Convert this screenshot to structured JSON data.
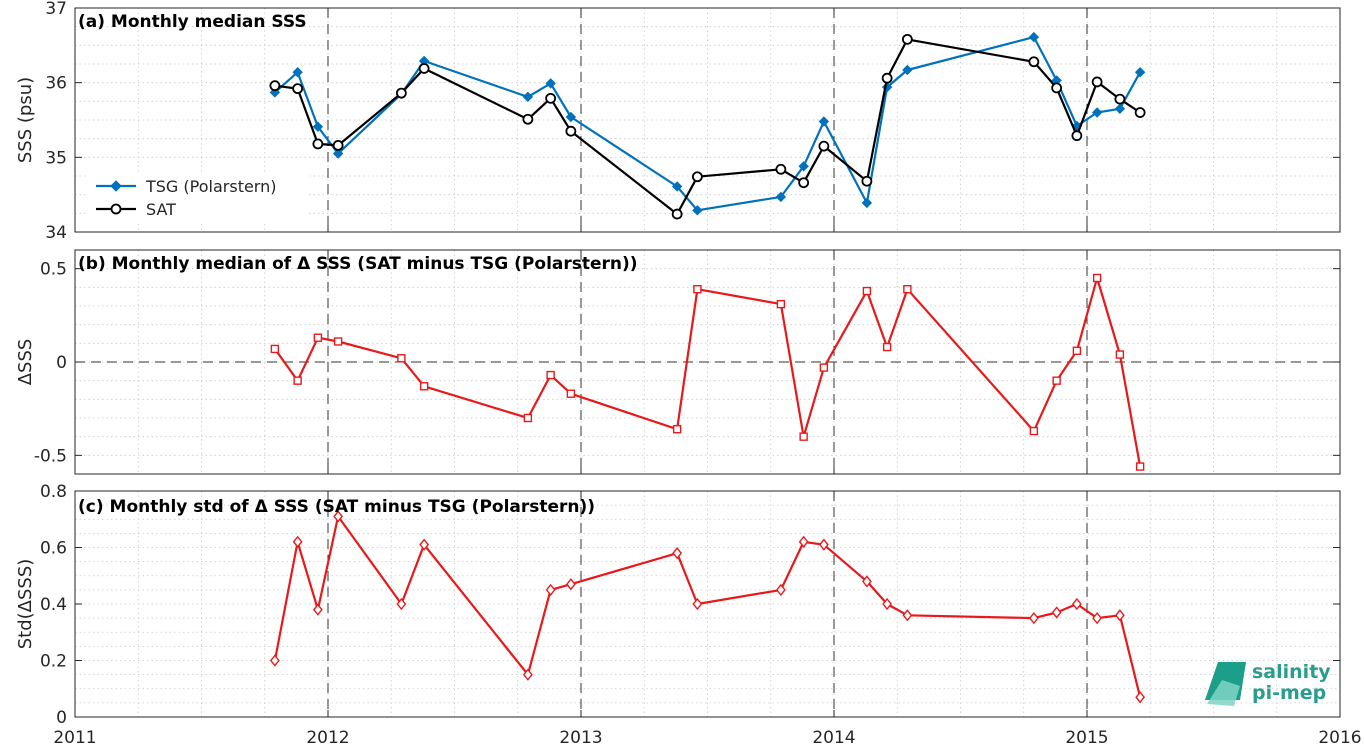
{
  "colors": {
    "tsg": "#0072BD",
    "sat": "#000000",
    "delta": "#E8191B",
    "grid": "#c8c8c8",
    "vline": "#333333"
  },
  "logo": {
    "line1": "salinity",
    "line2": "pi-mep"
  },
  "x_ticks": [
    "2011",
    "2012",
    "2013",
    "2014",
    "2015",
    "2016"
  ],
  "chart_data": [
    {
      "type": "line",
      "title": "(a) Monthly median SSS",
      "ylabel": "SSS (psu)",
      "xlim": [
        2011,
        2016
      ],
      "ylim": [
        34,
        37
      ],
      "y_ticks": [
        "34",
        "35",
        "36",
        "37"
      ],
      "legend": "bottom-left",
      "series": [
        {
          "name": "TSG (Polarstern)",
          "marker": "diamond-filled",
          "x": [
            2011.79,
            2011.88,
            2011.96,
            2012.04,
            2012.29,
            2012.38,
            2012.79,
            2012.88,
            2012.96,
            2013.38,
            2013.46,
            2013.79,
            2013.88,
            2013.96,
            2014.13,
            2014.21,
            2014.29,
            2014.79,
            2014.88,
            2014.96,
            2015.04,
            2015.13,
            2015.21
          ],
          "y": [
            35.87,
            36.14,
            35.41,
            35.05,
            35.85,
            36.29,
            35.81,
            35.99,
            35.54,
            34.61,
            34.29,
            34.47,
            34.88,
            35.48,
            34.39,
            35.94,
            36.17,
            36.61,
            36.03,
            35.42,
            35.6,
            35.65,
            36.14
          ]
        },
        {
          "name": "SAT",
          "marker": "circle-open",
          "x": [
            2011.79,
            2011.88,
            2011.96,
            2012.04,
            2012.29,
            2012.38,
            2012.79,
            2012.88,
            2012.96,
            2013.38,
            2013.46,
            2013.79,
            2013.88,
            2013.96,
            2014.13,
            2014.21,
            2014.29,
            2014.79,
            2014.88,
            2014.96,
            2015.04,
            2015.13,
            2015.21
          ],
          "y": [
            35.96,
            35.92,
            35.18,
            35.16,
            35.86,
            36.19,
            35.51,
            35.79,
            35.35,
            34.24,
            34.74,
            34.84,
            34.66,
            35.15,
            34.68,
            36.06,
            36.58,
            36.28,
            35.93,
            35.29,
            36.01,
            35.78,
            35.6
          ]
        }
      ]
    },
    {
      "type": "line",
      "title": "(b) Monthly median of Δ SSS (SAT minus TSG (Polarstern))",
      "ylabel": "ΔSSS",
      "xlim": [
        2011,
        2016
      ],
      "ylim": [
        -0.6,
        0.6
      ],
      "y_ticks": [
        "-0.5",
        "0",
        "0.5"
      ],
      "series": [
        {
          "marker": "square-open",
          "x": [
            2011.79,
            2011.88,
            2011.96,
            2012.04,
            2012.29,
            2012.38,
            2012.79,
            2012.88,
            2012.96,
            2013.38,
            2013.46,
            2013.79,
            2013.88,
            2013.96,
            2014.13,
            2014.21,
            2014.29,
            2014.79,
            2014.88,
            2014.96,
            2015.04,
            2015.13,
            2015.21
          ],
          "y": [
            0.07,
            -0.1,
            0.13,
            0.11,
            0.02,
            -0.13,
            -0.3,
            -0.07,
            -0.17,
            -0.36,
            0.39,
            0.31,
            -0.4,
            -0.03,
            0.38,
            0.08,
            0.39,
            -0.37,
            -0.1,
            0.06,
            0.45,
            0.04,
            -0.56
          ]
        }
      ]
    },
    {
      "type": "line",
      "title": "(c) Monthly std of Δ SSS (SAT minus TSG (Polarstern))",
      "ylabel": "Std(ΔSSS)",
      "xlim": [
        2011,
        2016
      ],
      "ylim": [
        0,
        0.8
      ],
      "y_ticks": [
        "0",
        "0.2",
        "0.4",
        "0.6",
        "0.8"
      ],
      "series": [
        {
          "marker": "diamond-open",
          "x": [
            2011.79,
            2011.88,
            2011.96,
            2012.04,
            2012.29,
            2012.38,
            2012.79,
            2012.88,
            2012.96,
            2013.38,
            2013.46,
            2013.79,
            2013.88,
            2013.96,
            2014.13,
            2014.21,
            2014.29,
            2014.79,
            2014.88,
            2014.96,
            2015.04,
            2015.13,
            2015.21
          ],
          "y": [
            0.2,
            0.62,
            0.38,
            0.71,
            0.4,
            0.61,
            0.15,
            0.45,
            0.47,
            0.58,
            0.4,
            0.45,
            0.62,
            0.61,
            0.48,
            0.4,
            0.36,
            0.35,
            0.37,
            0.4,
            0.35,
            0.36,
            0.07
          ]
        }
      ]
    }
  ]
}
